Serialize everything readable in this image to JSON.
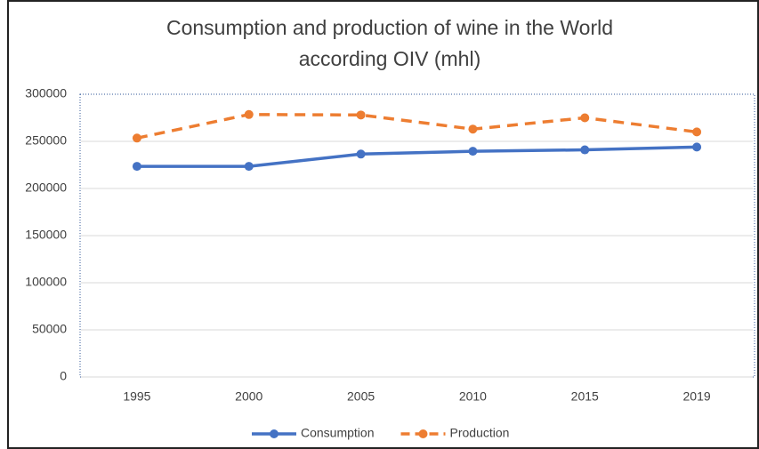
{
  "chart_data": {
    "type": "line",
    "title": [
      "Consumption and production of wine in the World",
      "according OIV (mhl)"
    ],
    "categories": [
      "1995",
      "2000",
      "2005",
      "2010",
      "2015",
      "2019"
    ],
    "series": [
      {
        "name": "Consumption",
        "color": "#4472c4",
        "dashed": false,
        "values": [
          223500,
          223500,
          236500,
          239500,
          241000,
          244000
        ]
      },
      {
        "name": "Production",
        "color": "#ed7d31",
        "dashed": true,
        "values": [
          253500,
          278500,
          278000,
          263000,
          275000,
          260000
        ]
      }
    ],
    "ylim": [
      0,
      300000
    ],
    "yticks": [
      0,
      50000,
      100000,
      150000,
      200000,
      250000,
      300000
    ],
    "grid": true,
    "legend": "bottom"
  }
}
